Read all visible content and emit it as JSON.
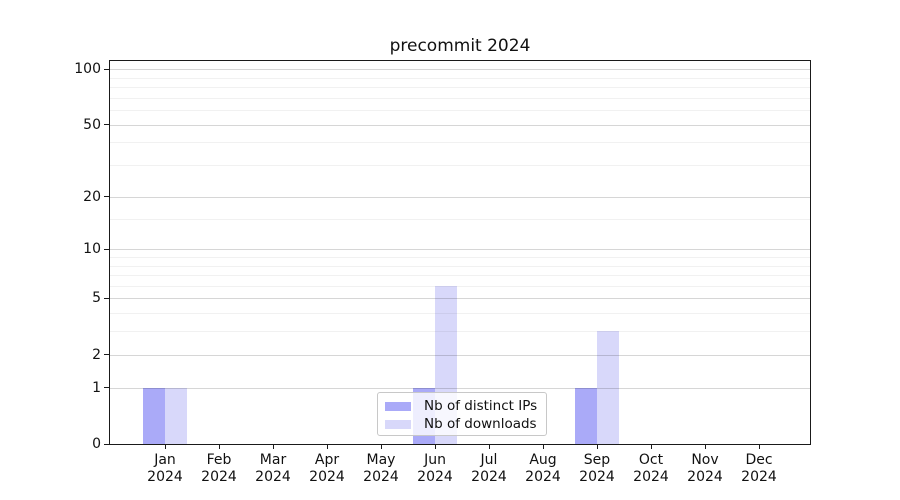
{
  "title": "precommit 2024",
  "chart_data": {
    "type": "bar",
    "title": "precommit 2024",
    "categories": [
      "Jan",
      "Feb",
      "Mar",
      "Apr",
      "May",
      "Jun",
      "Jul",
      "Aug",
      "Sep",
      "Oct",
      "Nov",
      "Dec"
    ],
    "category_year": "2024",
    "series": [
      {
        "name": "Nb of distinct IPs",
        "color": "#aaaaf8",
        "values": [
          1,
          0,
          0,
          0,
          0,
          1,
          0,
          0,
          1,
          0,
          0,
          0
        ]
      },
      {
        "name": "Nb of downloads",
        "color": "#d8d8fa",
        "values": [
          1,
          0,
          0,
          0,
          0,
          6,
          0,
          0,
          3,
          0,
          0,
          0
        ]
      }
    ],
    "xlabel": "",
    "ylabel": "",
    "yscale": "log1p",
    "ylim": [
      0,
      110.5
    ],
    "y_major_ticks": [
      0,
      1,
      2,
      5,
      10,
      20,
      50,
      100
    ],
    "y_minor_ticks": [
      3,
      4,
      6,
      7,
      8,
      9,
      15,
      30,
      40,
      60,
      70,
      80,
      90
    ],
    "grid": true,
    "legend_position": "lower center"
  }
}
